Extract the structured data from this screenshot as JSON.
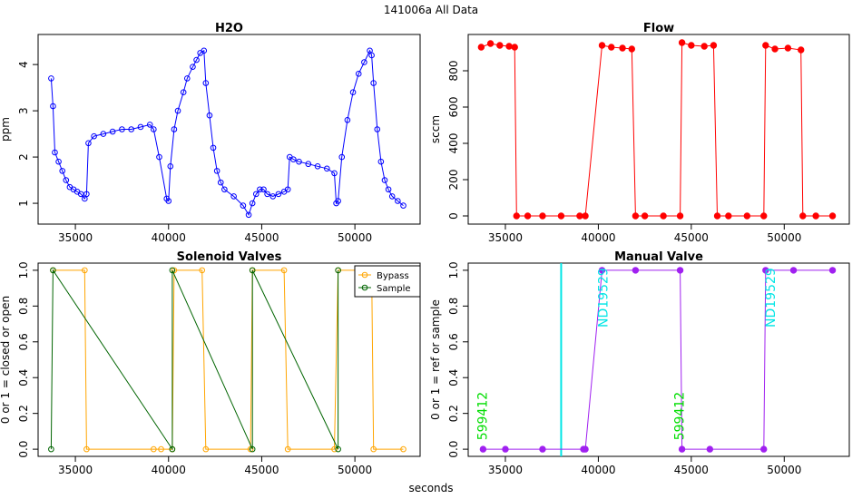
{
  "figure": {
    "supertitle": "141006a   All Data",
    "xlabel": "seconds"
  },
  "colors": {
    "h2o": "#0000ff",
    "flow": "#ff0000",
    "bypass": "#ffa500",
    "sample": "#006400",
    "manual": "#a020f0",
    "ref_line": "#00e5e5",
    "label_green": "#00dd00",
    "label_cyan": "#00e5e5"
  },
  "chart_data": [
    {
      "id": "h2o",
      "type": "scatter",
      "title": "H2O",
      "ylabel": "ppm",
      "xlim": [
        33000,
        53500
      ],
      "ylim": [
        0.55,
        4.65
      ],
      "xticks": [
        35000,
        40000,
        45000,
        50000
      ],
      "yticks": [
        1,
        2,
        3,
        4
      ],
      "series": [
        {
          "marker": "open-circle",
          "connected": true,
          "x": [
            33700,
            33800,
            33900,
            34100,
            34300,
            34500,
            34700,
            34900,
            35100,
            35300,
            35500,
            35600,
            35700,
            36000,
            36500,
            37000,
            37500,
            38000,
            38500,
            39000,
            39200,
            39500,
            39900,
            40000,
            40100,
            40300,
            40500,
            40800,
            41000,
            41300,
            41500,
            41700,
            41900,
            42000,
            42200,
            42400,
            42600,
            42800,
            43000,
            43500,
            44000,
            44300,
            44500,
            44700,
            44900,
            45100,
            45300,
            45600,
            45900,
            46200,
            46400,
            46500,
            46700,
            47000,
            47500,
            48000,
            48500,
            48900,
            49000,
            49100,
            49300,
            49600,
            49900,
            50200,
            50500,
            50800,
            50900,
            51000,
            51200,
            51400,
            51600,
            51800,
            52000,
            52300,
            52600
          ],
          "y": [
            3.7,
            3.1,
            2.1,
            1.9,
            1.7,
            1.5,
            1.35,
            1.3,
            1.25,
            1.2,
            1.1,
            1.2,
            2.3,
            2.45,
            2.5,
            2.55,
            2.6,
            2.6,
            2.65,
            2.7,
            2.6,
            2.0,
            1.1,
            1.05,
            1.8,
            2.6,
            3.0,
            3.4,
            3.7,
            3.95,
            4.1,
            4.25,
            4.3,
            3.6,
            2.9,
            2.2,
            1.7,
            1.45,
            1.3,
            1.15,
            0.95,
            0.75,
            1.0,
            1.2,
            1.3,
            1.3,
            1.2,
            1.15,
            1.2,
            1.25,
            1.3,
            2.0,
            1.95,
            1.9,
            1.85,
            1.8,
            1.75,
            1.65,
            1.0,
            1.05,
            2.0,
            2.8,
            3.4,
            3.8,
            4.05,
            4.3,
            4.2,
            3.6,
            2.6,
            1.9,
            1.5,
            1.3,
            1.15,
            1.05,
            0.95
          ]
        }
      ]
    },
    {
      "id": "flow",
      "type": "scatter",
      "title": "Flow",
      "ylabel": "sccm",
      "xlim": [
        33000,
        53500
      ],
      "ylim": [
        -45,
        1000
      ],
      "xticks": [
        35000,
        40000,
        45000,
        50000
      ],
      "yticks": [
        0,
        200,
        400,
        600,
        800
      ],
      "series": [
        {
          "marker": "filled-circle",
          "connected": true,
          "x": [
            33700,
            34200,
            34700,
            35200,
            35500,
            35600,
            36200,
            37000,
            38000,
            39000,
            39300,
            40200,
            40700,
            41300,
            41800,
            42000,
            42500,
            43500,
            44400,
            44500,
            45000,
            45700,
            46200,
            46400,
            47000,
            48000,
            48900,
            49000,
            49500,
            50200,
            50900,
            51000,
            51700,
            52600
          ],
          "y": [
            930,
            950,
            940,
            935,
            930,
            0,
            0,
            0,
            0,
            0,
            0,
            940,
            930,
            925,
            920,
            0,
            0,
            0,
            0,
            955,
            940,
            935,
            940,
            0,
            0,
            0,
            0,
            940,
            920,
            925,
            915,
            0,
            0,
            0
          ]
        }
      ]
    },
    {
      "id": "solenoid",
      "type": "line",
      "title": "Solenoid Valves",
      "ylabel": "0 or 1 = closed or open",
      "xlim": [
        33000,
        53500
      ],
      "ylim": [
        -0.04,
        1.04
      ],
      "xticks": [
        35000,
        40000,
        45000,
        50000
      ],
      "yticks": [
        0.0,
        0.2,
        0.4,
        0.6,
        0.8,
        1.0
      ],
      "legend": {
        "position": "top-right",
        "entries": [
          "Bypass",
          "Sample"
        ]
      },
      "series": [
        {
          "name": "Bypass",
          "marker": "open-circle",
          "x": [
            33800,
            35500,
            35600,
            39200,
            39600,
            40200,
            40300,
            41800,
            42000,
            44400,
            44500,
            46200,
            46400,
            48900,
            49100,
            50900,
            51000,
            52600
          ],
          "y": [
            1,
            1,
            0,
            0,
            0,
            0,
            1,
            1,
            0,
            0,
            1,
            1,
            0,
            0,
            1,
            1,
            0,
            0
          ]
        },
        {
          "name": "Sample",
          "marker": "open-circle",
          "x": [
            33700,
            33800,
            40200,
            40200,
            44500,
            44500,
            49100,
            49100
          ],
          "y": [
            0,
            1,
            0,
            1,
            0,
            1,
            0,
            1
          ]
        }
      ]
    },
    {
      "id": "manual",
      "type": "line",
      "title": "Manual Valve",
      "ylabel": "0 or 1 = ref or sample",
      "xlim": [
        33000,
        53500
      ],
      "ylim": [
        -0.04,
        1.04
      ],
      "xticks": [
        35000,
        40000,
        45000,
        50000
      ],
      "yticks": [
        0.0,
        0.2,
        0.4,
        0.6,
        0.8,
        1.0
      ],
      "vline": 38000,
      "annotations": [
        {
          "x": 34000,
          "y": 0.05,
          "text": "599412",
          "color": "green"
        },
        {
          "x": 40500,
          "y": 0.68,
          "text": "ND19529",
          "color": "cyan"
        },
        {
          "x": 44600,
          "y": 0.05,
          "text": "599412",
          "color": "green"
        },
        {
          "x": 49500,
          "y": 0.68,
          "text": "ND19529",
          "color": "cyan"
        }
      ],
      "series": [
        {
          "marker": "filled-circle",
          "x": [
            33800,
            35000,
            37000,
            39200,
            39300,
            40200,
            42000,
            44400,
            44500,
            46000,
            48900,
            49000,
            50500,
            52600
          ],
          "y": [
            0,
            0,
            0,
            0,
            0,
            1,
            1,
            1,
            0,
            0,
            0,
            1,
            1,
            1
          ]
        }
      ]
    }
  ]
}
